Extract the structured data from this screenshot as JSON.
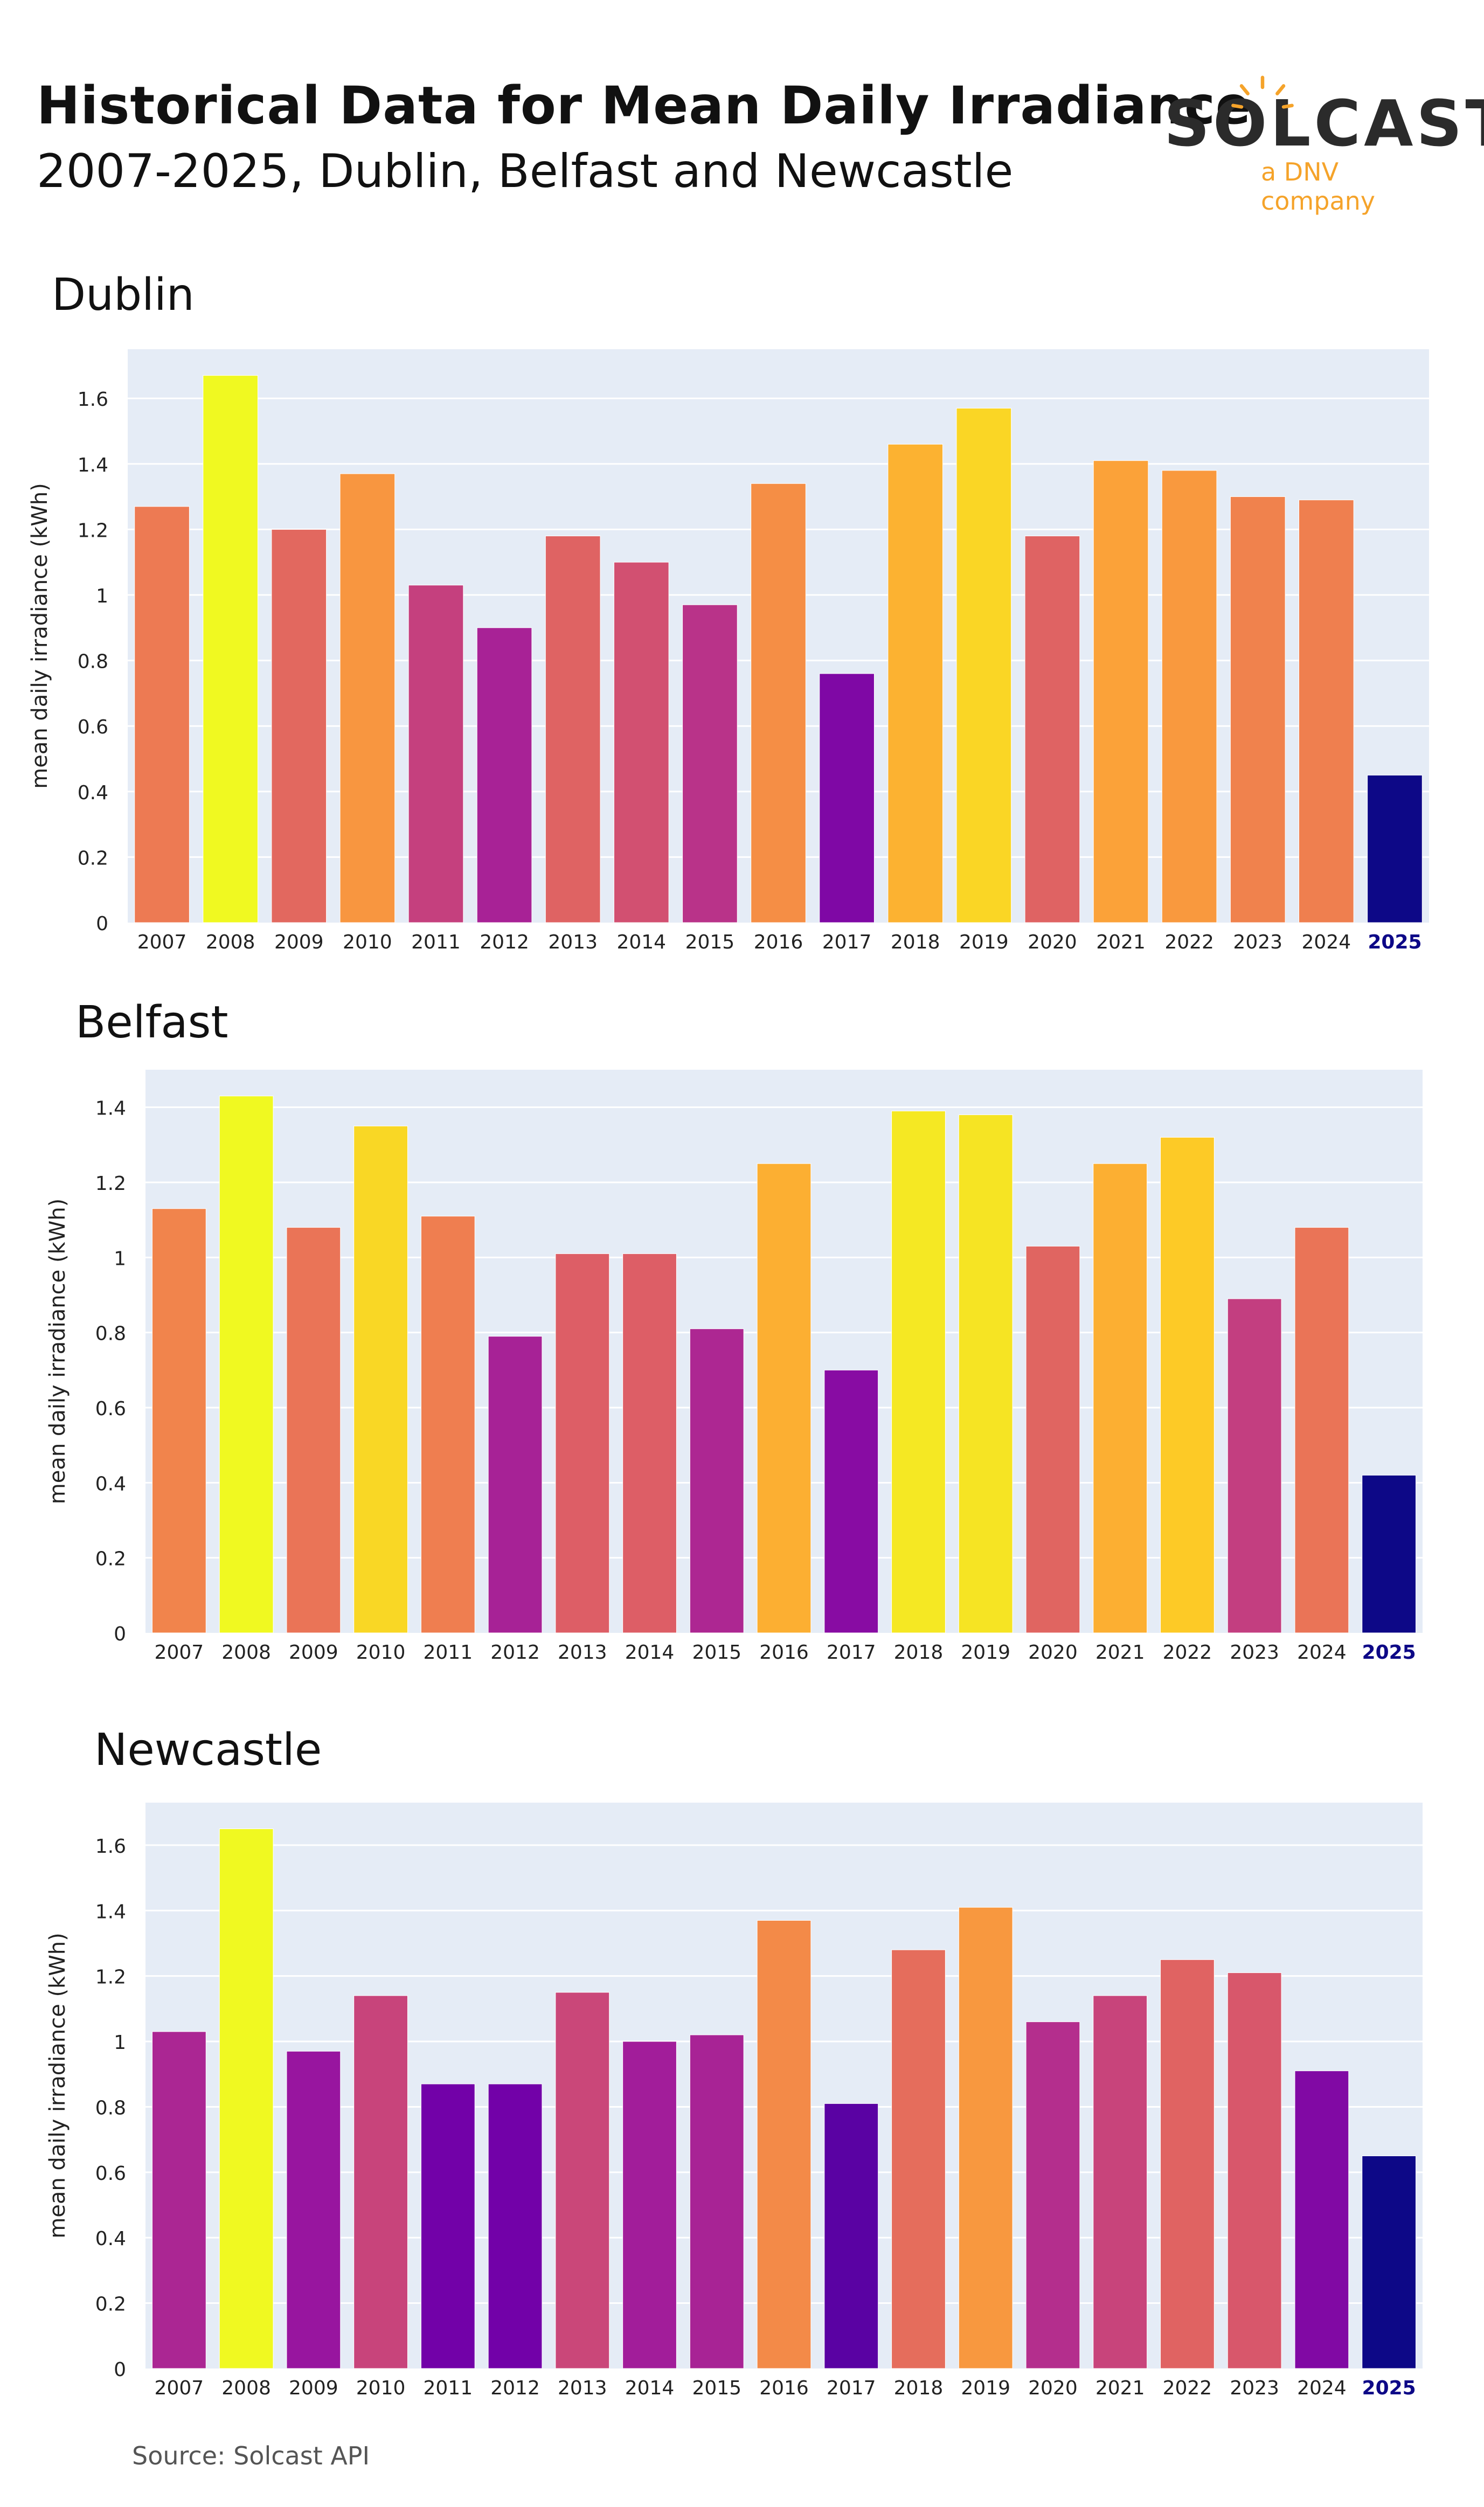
{
  "header": {
    "title": "Historical Data for Mean Daily Irradiance",
    "subtitle": "2007-2025, Dublin, Belfast and Newcastle"
  },
  "logo": {
    "wordmark": "SOLCAST",
    "tagline": "a DNV company",
    "colors": {
      "text": "#2b2b2b",
      "accent": "#f5a32a"
    }
  },
  "footer": {
    "source": "Source: Solcast API"
  },
  "theme": {
    "plot_bg": "#e5ecf6",
    "grid": "#ffffff",
    "highlight_tick_color": "#0d0887",
    "colorscale": "plasma"
  },
  "chart_data": [
    {
      "type": "bar",
      "title": "Dublin",
      "xlabel": "",
      "ylabel": "mean daily irradiance (kWh)",
      "ylim": [
        0,
        1.75
      ],
      "yticks": [
        0,
        0.2,
        0.4,
        0.6,
        0.8,
        1,
        1.2,
        1.4,
        1.6
      ],
      "ytick_labels": [
        "0",
        "0.2",
        "0.4",
        "0.6",
        "0.8",
        "1",
        "1.2",
        "1.4",
        "1.6"
      ],
      "grid": true,
      "highlight_category": "2025",
      "categories": [
        "2007",
        "2008",
        "2009",
        "2010",
        "2011",
        "2012",
        "2013",
        "2014",
        "2015",
        "2016",
        "2017",
        "2018",
        "2019",
        "2020",
        "2021",
        "2022",
        "2023",
        "2024",
        "2025"
      ],
      "values": [
        1.27,
        1.67,
        1.2,
        1.37,
        1.03,
        0.9,
        1.18,
        1.1,
        0.97,
        1.34,
        0.76,
        1.46,
        1.57,
        1.18,
        1.41,
        1.38,
        1.3,
        1.29,
        0.45
      ]
    },
    {
      "type": "bar",
      "title": "Belfast",
      "xlabel": "",
      "ylabel": "mean daily irradiance (kWh)",
      "ylim": [
        0,
        1.5
      ],
      "yticks": [
        0,
        0.2,
        0.4,
        0.6,
        0.8,
        1,
        1.2,
        1.4
      ],
      "ytick_labels": [
        "0",
        "0.2",
        "0.4",
        "0.6",
        "0.8",
        "1",
        "1.2",
        "1.4"
      ],
      "grid": true,
      "highlight_category": "2025",
      "categories": [
        "2007",
        "2008",
        "2009",
        "2010",
        "2011",
        "2012",
        "2013",
        "2014",
        "2015",
        "2016",
        "2017",
        "2018",
        "2019",
        "2020",
        "2021",
        "2022",
        "2023",
        "2024",
        "2025"
      ],
      "values": [
        1.13,
        1.43,
        1.08,
        1.35,
        1.11,
        0.79,
        1.01,
        1.01,
        0.81,
        1.25,
        0.7,
        1.39,
        1.38,
        1.03,
        1.25,
        1.32,
        0.89,
        1.08,
        0.42
      ]
    },
    {
      "type": "bar",
      "title": "Newcastle",
      "xlabel": "",
      "ylabel": "mean daily irradiance (kWh)",
      "ylim": [
        0,
        1.73
      ],
      "yticks": [
        0,
        0.2,
        0.4,
        0.6,
        0.8,
        1,
        1.2,
        1.4,
        1.6
      ],
      "ytick_labels": [
        "0",
        "0.2",
        "0.4",
        "0.6",
        "0.8",
        "1",
        "1.2",
        "1.4",
        "1.6"
      ],
      "grid": true,
      "highlight_category": "2025",
      "categories": [
        "2007",
        "2008",
        "2009",
        "2010",
        "2011",
        "2012",
        "2013",
        "2014",
        "2015",
        "2016",
        "2017",
        "2018",
        "2019",
        "2020",
        "2021",
        "2022",
        "2023",
        "2024",
        "2025"
      ],
      "values": [
        1.03,
        1.65,
        0.97,
        1.14,
        0.87,
        0.87,
        1.15,
        1.0,
        1.02,
        1.37,
        0.81,
        1.28,
        1.41,
        1.06,
        1.14,
        1.25,
        1.21,
        0.91,
        0.65
      ]
    }
  ]
}
